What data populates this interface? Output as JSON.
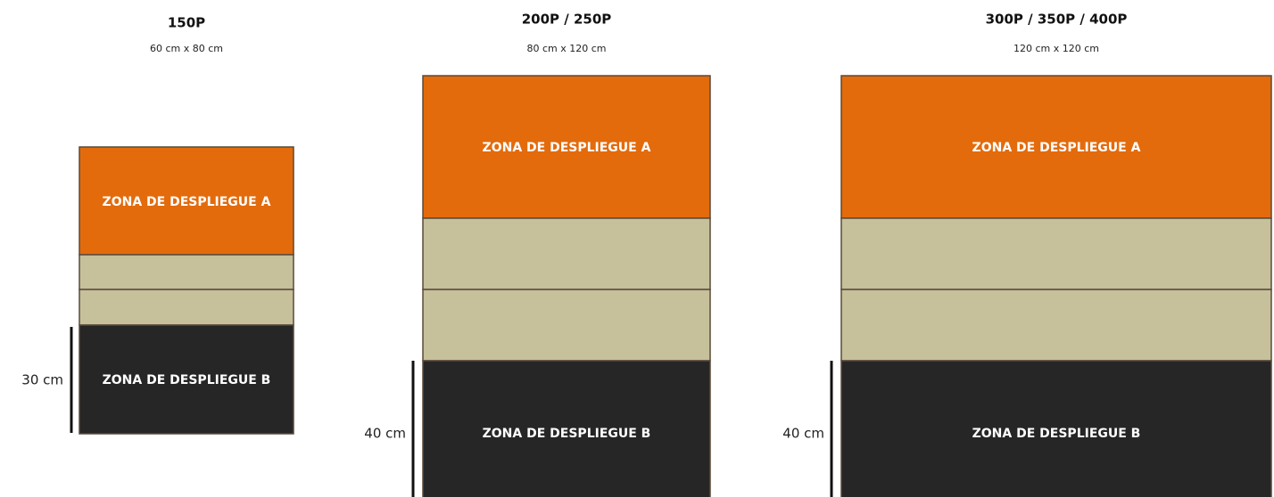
{
  "panels": [
    {
      "title": "150P",
      "size": "60 cm x 80 cm",
      "zone_a": "ZONA DE DESPLIEGUE A",
      "zone_b": "ZONA DE DESPLIEGUE B",
      "depth": "30 cm"
    },
    {
      "title": "200P / 250P",
      "size": "80 cm x 120 cm",
      "zone_a": "ZONA DE DESPLIEGUE A",
      "zone_b": "ZONA DE DESPLIEGUE B",
      "depth": "40 cm"
    },
    {
      "title": "300P / 350P / 400P",
      "size": "120 cm x 120 cm",
      "zone_a": "ZONA DE DESPLIEGUE A",
      "zone_b": "ZONA DE DESPLIEGUE B",
      "depth": "40 cm"
    }
  ]
}
